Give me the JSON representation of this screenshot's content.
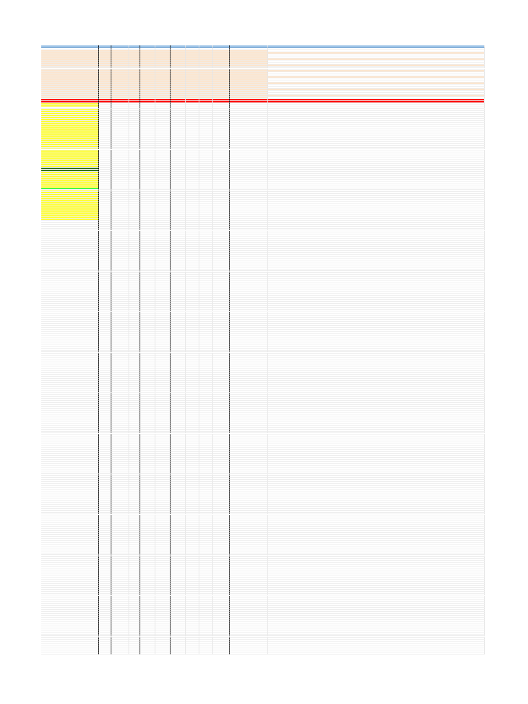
{
  "sheet": {
    "header": {
      "labels": [
        "",
        "",
        "",
        "",
        "",
        "",
        "",
        "",
        "",
        "",
        "",
        ""
      ]
    },
    "colors": {
      "header": "#9fc5e8",
      "highlight_yellow": "#ffff33",
      "highlight_orange": "#fce5cd",
      "highlight_red": "#ff0000",
      "highlight_green_dark": "#38761d",
      "highlight_green_light": "#00ff00",
      "grid": "#e4e4e4"
    },
    "row_count": 300,
    "orange_band_rows": [
      2,
      3,
      4,
      5,
      6,
      7,
      8,
      9,
      10,
      11,
      12,
      13,
      14,
      15,
      16,
      17,
      18,
      19,
      20,
      21,
      22,
      23,
      24,
      25
    ],
    "red_full_rows": [
      26,
      27
    ],
    "yellow_first_col_rows": [
      28,
      29,
      31,
      32,
      33,
      34,
      35,
      36,
      37,
      38,
      39,
      40,
      41,
      42,
      43,
      44,
      45,
      46,
      47,
      48,
      49,
      50,
      51,
      52,
      53,
      54,
      55,
      56,
      57,
      58,
      59,
      60,
      61,
      62,
      63,
      64,
      65,
      66,
      67,
      68,
      69,
      70,
      71,
      72,
      73,
      74,
      75,
      76,
      77,
      78,
      79,
      80,
      81,
      82,
      83,
      84,
      85
    ],
    "green_dark_rows": [
      60,
      61
    ],
    "green_light_rows": [
      70
    ],
    "notes": [
      "",
      "",
      "",
      "",
      "",
      "",
      "",
      "",
      "",
      "",
      "",
      ""
    ]
  }
}
